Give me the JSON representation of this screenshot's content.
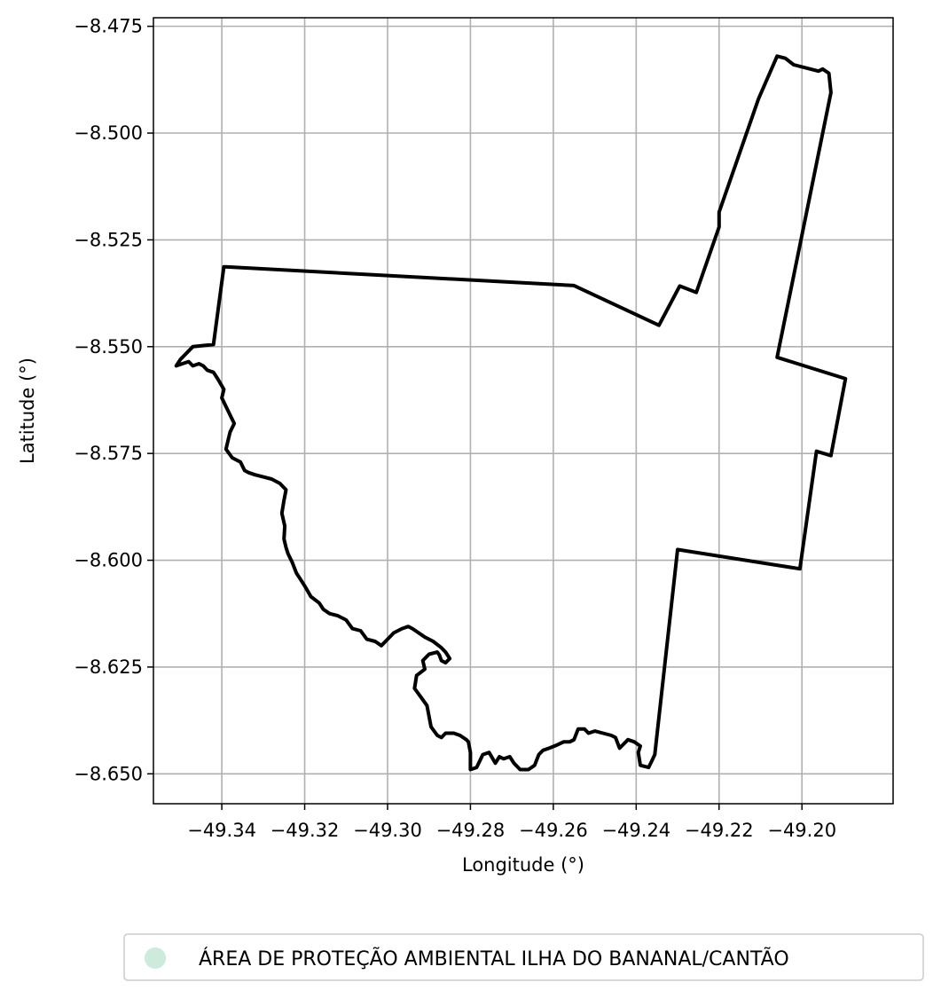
{
  "chart_data": {
    "type": "map",
    "title": "",
    "xlabel": "Longitude (°)",
    "ylabel": "Latitude (°)",
    "xlim": [
      -49.3565,
      -49.178
    ],
    "ylim": [
      -8.657,
      -8.473
    ],
    "grid": true,
    "x_ticks": [
      -49.34,
      -49.32,
      -49.3,
      -49.28,
      -49.26,
      -49.24,
      -49.22,
      -49.2
    ],
    "x_tick_labels": [
      "−49.34",
      "−49.32",
      "−49.30",
      "−49.28",
      "−49.26",
      "−49.24",
      "−49.22",
      "−49.20"
    ],
    "y_ticks": [
      -8.475,
      -8.5,
      -8.525,
      -8.55,
      -8.575,
      -8.6,
      -8.625,
      -8.65
    ],
    "y_tick_labels": [
      "−8.475",
      "−8.500",
      "−8.525",
      "−8.550",
      "−8.575",
      "−8.600",
      "−8.625",
      "−8.650"
    ],
    "legend_position": "bottom-center",
    "legend": [
      {
        "label": "ÁREA DE PROTEÇÃO AMBIENTAL ILHA DO BANANAL/CANTÃO",
        "color": "#cdeadb"
      }
    ],
    "boundary_color": "#000000",
    "boundary": [
      [
        -49.3395,
        -8.5313
      ],
      [
        -49.255,
        -8.5357
      ],
      [
        -49.2345,
        -8.545
      ],
      [
        -49.2295,
        -8.5358
      ],
      [
        -49.2255,
        -8.5373
      ],
      [
        -49.22,
        -8.522
      ],
      [
        -49.22,
        -8.5185
      ],
      [
        -49.2105,
        -8.492
      ],
      [
        -49.206,
        -8.482
      ],
      [
        -49.204,
        -8.4825
      ],
      [
        -49.202,
        -8.484
      ],
      [
        -49.198,
        -8.485
      ],
      [
        -49.196,
        -8.4855
      ],
      [
        -49.195,
        -8.485
      ],
      [
        -49.1935,
        -8.486
      ],
      [
        -49.193,
        -8.4905
      ],
      [
        -49.206,
        -8.5525
      ],
      [
        -49.1895,
        -8.5575
      ],
      [
        -49.193,
        -8.5755
      ],
      [
        -49.1965,
        -8.5745
      ],
      [
        -49.2005,
        -8.602
      ],
      [
        -49.23,
        -8.5975
      ],
      [
        -49.2355,
        -8.6455
      ],
      [
        -49.2365,
        -8.6475
      ],
      [
        -49.237,
        -8.6485
      ],
      [
        -49.239,
        -8.648
      ],
      [
        -49.2395,
        -8.645
      ],
      [
        -49.239,
        -8.6435
      ],
      [
        -49.2405,
        -8.6425
      ],
      [
        -49.242,
        -8.642
      ],
      [
        -49.244,
        -8.644
      ],
      [
        -49.245,
        -8.6415
      ],
      [
        -49.246,
        -8.641
      ],
      [
        -49.248,
        -8.6405
      ],
      [
        -49.25,
        -8.64
      ],
      [
        -49.2515,
        -8.6405
      ],
      [
        -49.2525,
        -8.6395
      ],
      [
        -49.254,
        -8.6395
      ],
      [
        -49.255,
        -8.642
      ],
      [
        -49.256,
        -8.6425
      ],
      [
        -49.2575,
        -8.6425
      ],
      [
        -49.259,
        -8.6432
      ],
      [
        -49.261,
        -8.644
      ],
      [
        -49.2625,
        -8.6445
      ],
      [
        -49.2635,
        -8.6455
      ],
      [
        -49.2645,
        -8.648
      ],
      [
        -49.266,
        -8.649
      ],
      [
        -49.268,
        -8.649
      ],
      [
        -49.2695,
        -8.6475
      ],
      [
        -49.2705,
        -8.646
      ],
      [
        -49.272,
        -8.6465
      ],
      [
        -49.273,
        -8.646
      ],
      [
        -49.274,
        -8.6475
      ],
      [
        -49.2755,
        -8.645
      ],
      [
        -49.277,
        -8.6455
      ],
      [
        -49.2785,
        -8.6485
      ],
      [
        -49.28,
        -8.649
      ],
      [
        -49.28,
        -8.645
      ],
      [
        -49.2805,
        -8.6425
      ],
      [
        -49.281,
        -8.642
      ],
      [
        -49.2825,
        -8.641
      ],
      [
        -49.284,
        -8.6405
      ],
      [
        -49.286,
        -8.6405
      ],
      [
        -49.287,
        -8.6415
      ],
      [
        -49.288,
        -8.641
      ],
      [
        -49.2895,
        -8.639
      ],
      [
        -49.29,
        -8.6365
      ],
      [
        -49.2905,
        -8.634
      ],
      [
        -49.292,
        -8.632
      ],
      [
        -49.2935,
        -8.63
      ],
      [
        -49.293,
        -8.627
      ],
      [
        -49.291,
        -8.6255
      ],
      [
        -49.2915,
        -8.6235
      ],
      [
        -49.29,
        -8.622
      ],
      [
        -49.288,
        -8.6215
      ],
      [
        -49.2875,
        -8.6222
      ],
      [
        -49.287,
        -8.6235
      ],
      [
        -49.286,
        -8.624
      ],
      [
        -49.285,
        -8.623
      ],
      [
        -49.286,
        -8.6215
      ],
      [
        -49.287,
        -8.6205
      ],
      [
        -49.289,
        -8.619
      ],
      [
        -49.291,
        -8.618
      ],
      [
        -49.2925,
        -8.617
      ],
      [
        -49.294,
        -8.616
      ],
      [
        -49.295,
        -8.6155
      ],
      [
        -49.2965,
        -8.616
      ],
      [
        -49.2985,
        -8.617
      ],
      [
        -49.3,
        -8.6185
      ],
      [
        -49.3015,
        -8.62
      ],
      [
        -49.303,
        -8.619
      ],
      [
        -49.305,
        -8.6185
      ],
      [
        -49.3065,
        -8.6165
      ],
      [
        -49.3085,
        -8.616
      ],
      [
        -49.31,
        -8.614
      ],
      [
        -49.312,
        -8.613
      ],
      [
        -49.314,
        -8.6125
      ],
      [
        -49.3155,
        -8.6115
      ],
      [
        -49.3165,
        -8.61
      ],
      [
        -49.3185,
        -8.6085
      ],
      [
        -49.32,
        -8.606
      ],
      [
        -49.321,
        -8.6045
      ],
      [
        -49.322,
        -8.603
      ],
      [
        -49.323,
        -8.6005
      ],
      [
        -49.324,
        -8.5985
      ],
      [
        -49.3245,
        -8.597
      ],
      [
        -49.325,
        -8.595
      ],
      [
        -49.3248,
        -8.592
      ],
      [
        -49.3255,
        -8.589
      ],
      [
        -49.325,
        -8.586
      ],
      [
        -49.3245,
        -8.5835
      ],
      [
        -49.326,
        -8.582
      ],
      [
        -49.328,
        -8.581
      ],
      [
        -49.33,
        -8.5805
      ],
      [
        -49.332,
        -8.58
      ],
      [
        -49.3335,
        -8.5795
      ],
      [
        -49.3345,
        -8.579
      ],
      [
        -49.3355,
        -8.577
      ],
      [
        -49.3375,
        -8.576
      ],
      [
        -49.339,
        -8.574
      ],
      [
        -49.338,
        -8.57
      ],
      [
        -49.337,
        -8.568
      ],
      [
        -49.338,
        -8.566
      ],
      [
        -49.339,
        -8.564
      ],
      [
        -49.34,
        -8.562
      ],
      [
        -49.3395,
        -8.56
      ],
      [
        -49.341,
        -8.5575
      ],
      [
        -49.342,
        -8.556
      ],
      [
        -49.3435,
        -8.5555
      ],
      [
        -49.3445,
        -8.5545
      ],
      [
        -49.3455,
        -8.554
      ],
      [
        -49.347,
        -8.5545
      ],
      [
        -49.348,
        -8.5535
      ],
      [
        -49.3495,
        -8.554
      ],
      [
        -49.351,
        -8.5545
      ],
      [
        -49.35,
        -8.553
      ],
      [
        -49.347,
        -8.55
      ],
      [
        -49.342,
        -8.5495
      ],
      [
        -49.3395,
        -8.5313
      ]
    ]
  }
}
